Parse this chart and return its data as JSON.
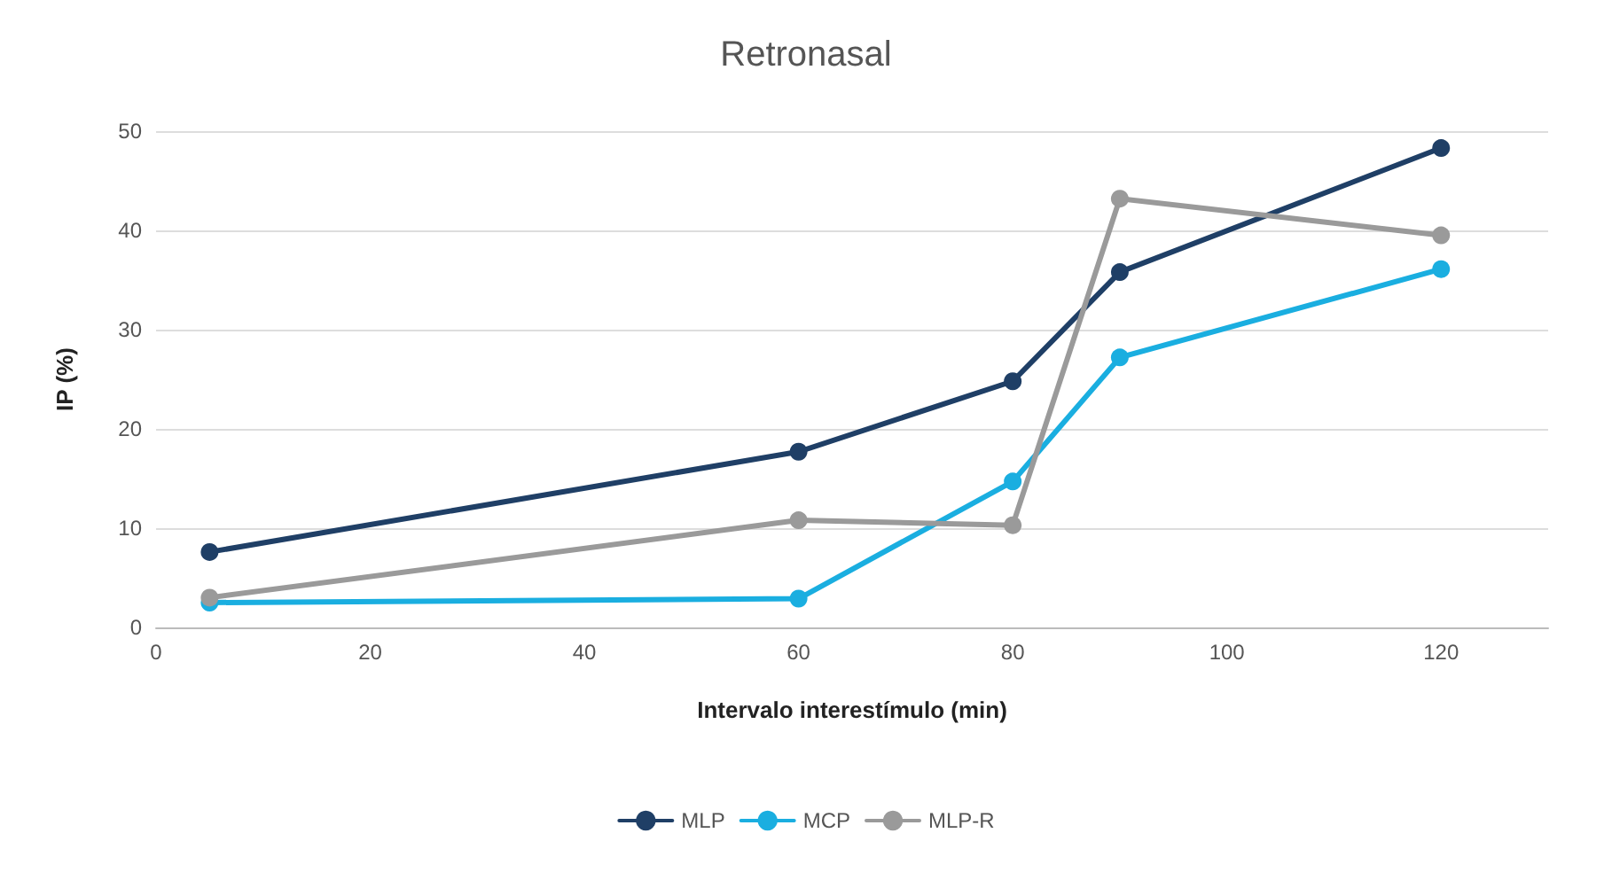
{
  "chart_data": {
    "type": "line",
    "title": "Retronasal",
    "xlabel": "Intervalo interestímulo (min)",
    "ylabel": "IP (%)",
    "series": [
      {
        "name": "MLP",
        "color": "#1f3f66",
        "x": [
          5,
          60,
          80,
          90,
          120
        ],
        "values": [
          7.6,
          17.7,
          24.8,
          35.8,
          48.3
        ]
      },
      {
        "name": "MCP",
        "color": "#1aaee0",
        "x": [
          5,
          60,
          80,
          90,
          120
        ],
        "values": [
          2.5,
          2.9,
          14.7,
          27.2,
          36.1
        ]
      },
      {
        "name": "MLP-R",
        "color": "#9a9a9a",
        "x": [
          5,
          60,
          80,
          90,
          120
        ],
        "values": [
          3.0,
          10.8,
          10.3,
          43.2,
          39.5
        ]
      }
    ],
    "xlim": [
      0,
      130
    ],
    "xticks": [
      0,
      20,
      40,
      60,
      80,
      100,
      120
    ],
    "ylim": [
      0,
      50
    ],
    "yticks": [
      0,
      10,
      20,
      30,
      40,
      50
    ],
    "grid": "y",
    "legend": "bottom",
    "marker": "circle",
    "line_style": "solid"
  }
}
